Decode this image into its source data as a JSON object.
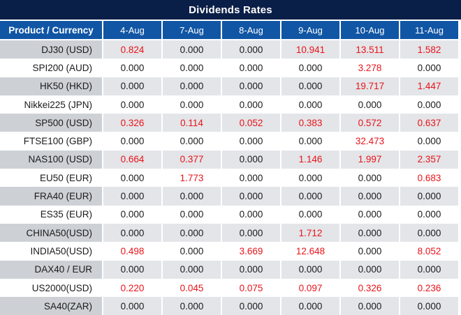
{
  "title": "Dividends Rates",
  "header": {
    "product_col": "Product / Currency",
    "dates": [
      "4-Aug",
      "7-Aug",
      "8-Aug",
      "9-Aug",
      "10-Aug",
      "11-Aug"
    ]
  },
  "rows": [
    {
      "product": "DJ30 (USD)",
      "values": [
        "0.824",
        "0.000",
        "0.000",
        "10.941",
        "13.511",
        "1.582"
      ]
    },
    {
      "product": "SPI200 (AUD)",
      "values": [
        "0.000",
        "0.000",
        "0.000",
        "0.000",
        "3.278",
        "0.000"
      ]
    },
    {
      "product": "HK50 (HKD)",
      "values": [
        "0.000",
        "0.000",
        "0.000",
        "0.000",
        "19.717",
        "1.447"
      ]
    },
    {
      "product": "Nikkei225 (JPN)",
      "values": [
        "0.000",
        "0.000",
        "0.000",
        "0.000",
        "0.000",
        "0.000"
      ]
    },
    {
      "product": "SP500 (USD)",
      "values": [
        "0.326",
        "0.114",
        "0.052",
        "0.383",
        "0.572",
        "0.637"
      ]
    },
    {
      "product": "FTSE100 (GBP)",
      "values": [
        "0.000",
        "0.000",
        "0.000",
        "0.000",
        "32.473",
        "0.000"
      ]
    },
    {
      "product": "NAS100 (USD)",
      "values": [
        "0.664",
        "0.377",
        "0.000",
        "1.146",
        "1.997",
        "2.357"
      ]
    },
    {
      "product": "EU50 (EUR)",
      "values": [
        "0.000",
        "1.773",
        "0.000",
        "0.000",
        "0.000",
        "0.683"
      ]
    },
    {
      "product": "FRA40 (EUR)",
      "values": [
        "0.000",
        "0.000",
        "0.000",
        "0.000",
        "0.000",
        "0.000"
      ]
    },
    {
      "product": "ES35 (EUR)",
      "values": [
        "0.000",
        "0.000",
        "0.000",
        "0.000",
        "0.000",
        "0.000"
      ]
    },
    {
      "product": "CHINA50(USD)",
      "values": [
        "0.000",
        "0.000",
        "0.000",
        "1.712",
        "0.000",
        "0.000"
      ]
    },
    {
      "product": "INDIA50(USD)",
      "values": [
        "0.498",
        "0.000",
        "3.669",
        "12.648",
        "0.000",
        "8.052"
      ]
    },
    {
      "product": "DAX40 / EUR",
      "values": [
        "0.000",
        "0.000",
        "0.000",
        "0.000",
        "0.000",
        "0.000"
      ]
    },
    {
      "product": "US2000(USD)",
      "values": [
        "0.220",
        "0.045",
        "0.075",
        "0.097",
        "0.326",
        "0.236"
      ]
    },
    {
      "product": "SA40(ZAR)",
      "values": [
        "0.000",
        "0.000",
        "0.000",
        "0.000",
        "0.000",
        "0.000"
      ]
    }
  ],
  "colors": {
    "title_bg": "#0a1f48",
    "header_bg": "#1156a5",
    "nonzero_value_red": "#e8131a",
    "zero_value_text": "#1a1a1a",
    "stripe_product_bg": "#cdd1d6",
    "stripe_value_bg": "#e3e5e8",
    "row_plain_bg": "#ffffff",
    "border_white": "#ffffff"
  }
}
